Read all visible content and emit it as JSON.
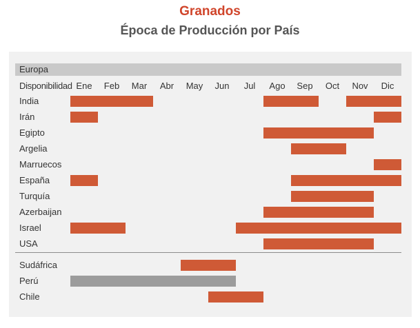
{
  "chart_data": {
    "type": "gantt",
    "title": "Granados",
    "subtitle": "Época de Producción por País",
    "region": "Europa",
    "header_label": "Disponibilidad",
    "months": [
      "Ene",
      "Feb",
      "Mar",
      "Abr",
      "May",
      "Jun",
      "Jul",
      "Ago",
      "Sep",
      "Oct",
      "Nov",
      "Dic"
    ],
    "colors": {
      "primary": "#cf5a36",
      "secondary": "#9c9c9c"
    },
    "groups": [
      {
        "rows": [
          {
            "name": "India",
            "periods": [
              [
                1,
                3
              ],
              [
                8,
                9
              ],
              [
                11,
                12
              ]
            ]
          },
          {
            "name": "Irán",
            "periods": [
              [
                1,
                1
              ],
              [
                12,
                12
              ]
            ]
          },
          {
            "name": "Egipto",
            "periods": [
              [
                8,
                11
              ]
            ]
          },
          {
            "name": "Argelia",
            "periods": [
              [
                9,
                10
              ]
            ]
          },
          {
            "name": "Marruecos",
            "periods": [
              [
                12,
                12
              ]
            ]
          },
          {
            "name": "España",
            "periods": [
              [
                1,
                1
              ],
              [
                9,
                12
              ]
            ]
          },
          {
            "name": "Turquía",
            "periods": [
              [
                9,
                11
              ]
            ]
          },
          {
            "name": "Azerbaijan",
            "periods": [
              [
                8,
                11
              ]
            ]
          },
          {
            "name": "Israel",
            "periods": [
              [
                1,
                2
              ],
              [
                7,
                12
              ]
            ]
          },
          {
            "name": "USA",
            "periods": [
              [
                8,
                11
              ]
            ]
          }
        ]
      },
      {
        "rows": [
          {
            "name": "Sudáfrica",
            "periods": [
              [
                5,
                6
              ]
            ]
          },
          {
            "name": "Perú",
            "periods": [
              [
                1,
                6
              ]
            ],
            "color": "secondary"
          },
          {
            "name": "Chile",
            "periods": [
              [
                6,
                7
              ]
            ]
          }
        ]
      }
    ]
  }
}
